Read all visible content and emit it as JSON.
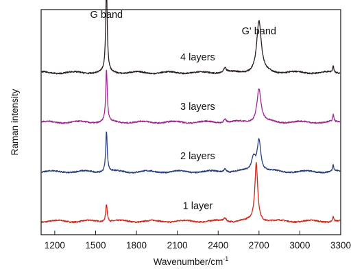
{
  "chart_data": {
    "type": "line",
    "xlabel_main": "Wavenumber/cm",
    "xlabel_sup": "-1",
    "ylabel": "Raman intensity",
    "xlim": [
      1100,
      3300
    ],
    "ylim": [
      0,
      100
    ],
    "x_ticks": [
      1200,
      1500,
      1800,
      2100,
      2400,
      2700,
      3000,
      3300
    ],
    "grid": false,
    "peak_annotations": [
      {
        "id": "g",
        "text": "G band",
        "x": 1580
      },
      {
        "id": "gp",
        "text": "G' band",
        "x": 2700
      }
    ],
    "series": [
      {
        "id": "s1",
        "label": "1 layer",
        "color": "#cc2a1d",
        "label_x": 2250,
        "offset": 6,
        "peaks": [
          {
            "x": 1580,
            "height": 8,
            "width": 7
          },
          {
            "x": 2680,
            "height": 26,
            "width": 13
          },
          {
            "x": 2450,
            "height": 1.5,
            "width": 12
          },
          {
            "x": 3245,
            "height": 2,
            "width": 5
          }
        ]
      },
      {
        "id": "s2",
        "label": "2 layers",
        "color": "#2a3f7d",
        "label_x": 2250,
        "offset": 28,
        "peaks": [
          {
            "x": 1580,
            "height": 18,
            "width": 7
          },
          {
            "x": 2660,
            "height": 6,
            "width": 18
          },
          {
            "x": 2700,
            "height": 14,
            "width": 16
          },
          {
            "x": 2450,
            "height": 1.5,
            "width": 12
          },
          {
            "x": 3245,
            "height": 3,
            "width": 5
          }
        ]
      },
      {
        "id": "s3",
        "label": "3 layers",
        "color": "#9c2a8f",
        "label_x": 2250,
        "offset": 50,
        "peaks": [
          {
            "x": 1580,
            "height": 23,
            "width": 7
          },
          {
            "x": 2700,
            "height": 15,
            "width": 18
          },
          {
            "x": 2450,
            "height": 1.5,
            "width": 12
          },
          {
            "x": 3245,
            "height": 3,
            "width": 5
          }
        ]
      },
      {
        "id": "s4",
        "label": "4 layers",
        "color": "#2b1f1f",
        "label_x": 2250,
        "offset": 72,
        "peaks": [
          {
            "x": 1580,
            "height": 38,
            "width": 7
          },
          {
            "x": 2700,
            "height": 23,
            "width": 20
          },
          {
            "x": 2450,
            "height": 2,
            "width": 12
          },
          {
            "x": 3245,
            "height": 3,
            "width": 5
          }
        ]
      }
    ]
  }
}
